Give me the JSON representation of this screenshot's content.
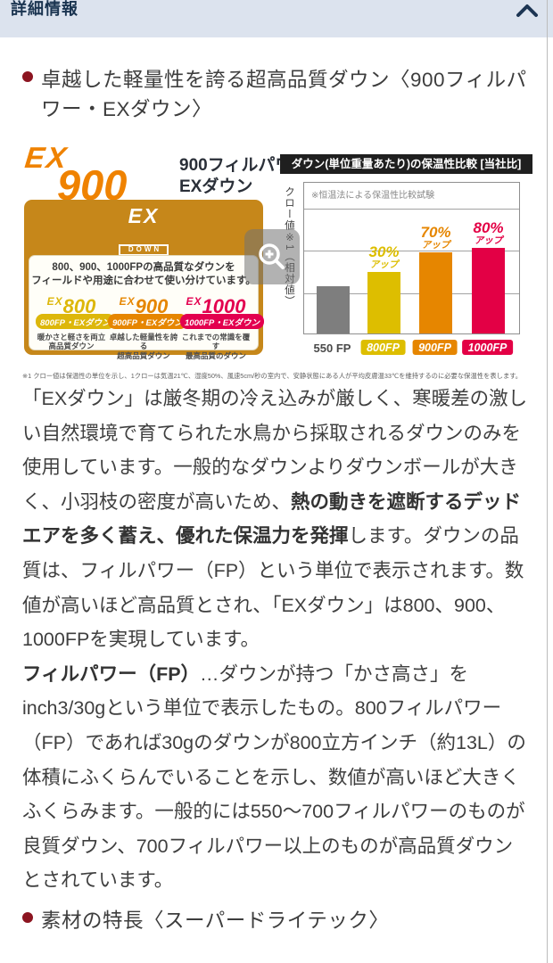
{
  "header": {
    "title": "詳細情報"
  },
  "sections": {
    "down": {
      "heading": "卓越した軽量性を誇る超高品質ダウン〈900フィルパワー・EXダウン〉"
    },
    "material": {
      "heading": "素材の特長〈スーパードライテック〉"
    }
  },
  "figure": {
    "logo": {
      "ex": "EX",
      "number": "900",
      "caption_line1": "900フィルパワー",
      "caption_line2": "EXダウン",
      "color": "#ef8200"
    },
    "gold_box": {
      "logo_ex": "EX",
      "logo_down": "DOWN",
      "headline": "優れた保温性を発揮する「EXダウン」",
      "panel_line1": "800、900、1000FPの高品質なダウンを",
      "panel_line2": "フィールドや用途に合わせて使い分けています。",
      "variants": [
        {
          "ex": "EX",
          "number": "800",
          "badge": "800FP・EXダウン",
          "desc_line1": "暖かさと軽さを両立",
          "desc_line2": "高品質ダウン",
          "color": "#ddb70a"
        },
        {
          "ex": "EX",
          "number": "900",
          "badge": "900FP・EXダウン",
          "desc_line1": "卓越した軽量性を誇る",
          "desc_line2": "超高品質ダウン",
          "color": "#e68600"
        },
        {
          "ex": "EX",
          "number": "1000",
          "badge": "1000FP・EXダウン",
          "desc_line1": "これまでの常識を覆す",
          "desc_line2": "最高品質のダウン",
          "color": "#e3004f"
        }
      ]
    },
    "footnote": "※1 クロー値は保温性の単位を示し、1クローは気温21℃、湿度50%、風速5cm/秒の室内で、安静状態にある人が平均皮膚温33℃を維持するのに必要な保温性を表します。"
  },
  "chart_data": {
    "type": "bar",
    "title": "ダウン(単位重量あたり)の保温性比較 [当社比]",
    "note": "※恒温法による保温性比較試験",
    "ylabel": "クロー値※1（相対値）",
    "categories": [
      "550 FP",
      "800FP",
      "900FP",
      "1000FP"
    ],
    "values": [
      1.0,
      1.3,
      1.7,
      1.8
    ],
    "annotations": [
      null,
      {
        "pct": "30%",
        "word": "アップ"
      },
      {
        "pct": "70%",
        "word": "アップ"
      },
      {
        "pct": "80%",
        "word": "アップ"
      }
    ],
    "bar_colors": [
      "#7e7e7e",
      "#ddbe00",
      "#e68600",
      "#e30045"
    ],
    "label_badge": [
      false,
      true,
      true,
      true
    ],
    "ylim": [
      0,
      3.2
    ],
    "grid": true,
    "legend": false
  },
  "paragraphs": {
    "p1": {
      "pre": "「EXダウン」は厳冬期の冷え込みが厳しく、寒暖差の激しい自然環境で育てられた水鳥から採取されるダウンのみを使用しています。一般的なダウンよりダウンボールが大きく、小羽枝の密度が高いため、",
      "bold": "熱の動きを遮断するデッドエアを多く蓄え、優れた保温力を発揮",
      "post": "します。ダウンの品質は、フィルパワー（FP）という単位で表示されます。数値が高いほど高品質とされ、「EXダウン」は800、900、1000FPを実現しています。"
    },
    "p2": {
      "bold": "フィルパワー（FP）",
      "text": "…ダウンが持つ「かさ高さ」をinch3/30gという単位で表示したもの。800フィルパワー（FP）であれば30gのダウンが800立方インチ（約13L）の体積にふくらんでいることを示し、数値が高いほど大きくふくらみます。一般的には550〜700フィルパワーのものが良質ダウン、700フィルパワー以上のものが高品質ダウンとされています。"
    }
  }
}
